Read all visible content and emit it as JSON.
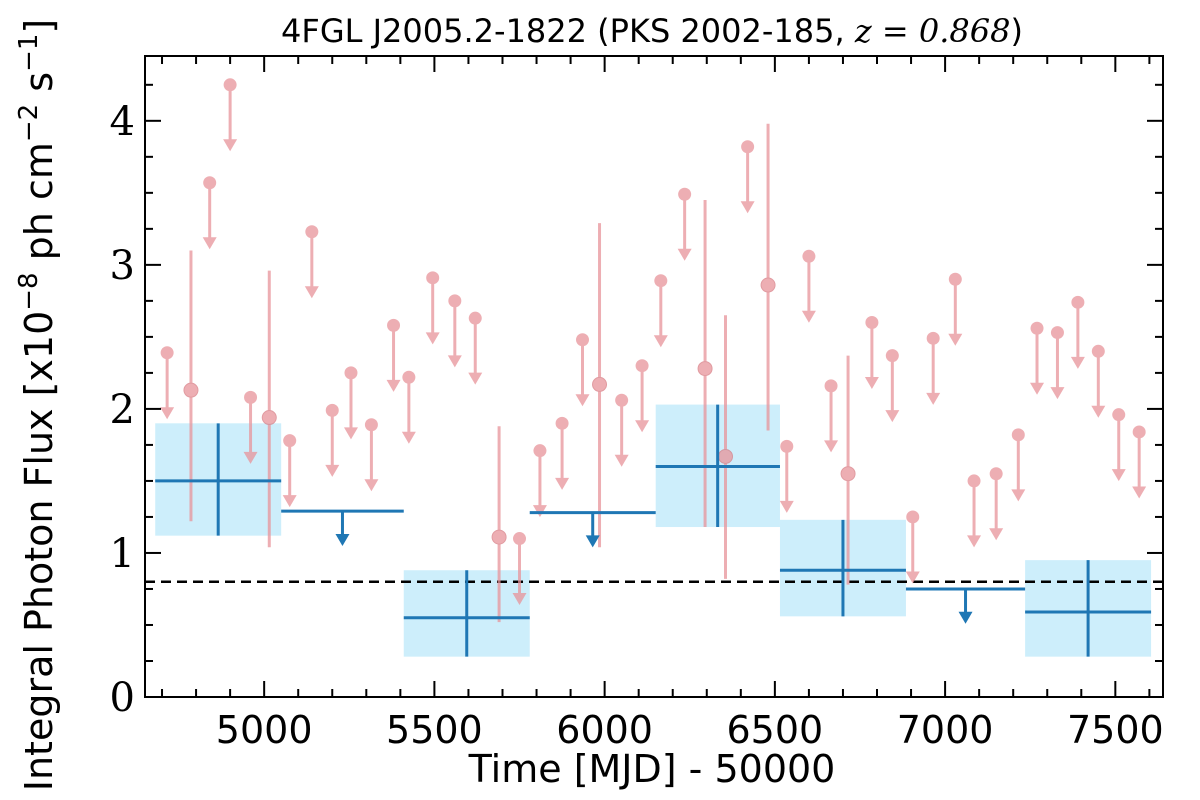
{
  "chart_data": {
    "type": "scatter",
    "title": "4FGL J2005.2-1822 (PKS 2002-185, ",
    "title_redshift": "z = 0.868",
    "title_close": ")",
    "xlabel": "Time [MJD] - 50000",
    "ylabel": "Integral Photon Flux [x10",
    "ylabel_exp": "−8",
    "ylabel_mid": " ph cm",
    "ylabel_exp2": "−2",
    "ylabel_tail": " s",
    "ylabel_exp3": "−1",
    "ylabel_close": "]",
    "xlim": [
      4650,
      7640
    ],
    "ylim": [
      0,
      4.45
    ],
    "xticks": [
      5000,
      5500,
      6000,
      6500,
      7000,
      7500
    ],
    "xtick_labels": [
      "5000",
      "5500",
      "6000",
      "6500",
      "7000",
      "7500"
    ],
    "yticks": [
      0,
      1,
      2,
      3,
      4
    ],
    "ytick_labels": [
      "0",
      "1",
      "2",
      "3",
      "4"
    ],
    "reference_line": 0.8,
    "colors": {
      "short_bins": "#e8949a",
      "long_bins": "#1f77b4",
      "long_band": "#cdeefb",
      "reference": "#000000"
    },
    "short_bins": {
      "detections": [
        {
          "x": 4785,
          "y": 2.13,
          "ylo": 1.22,
          "yhi": 3.1
        },
        {
          "x": 5015,
          "y": 1.94,
          "ylo": 1.04,
          "yhi": 2.96
        },
        {
          "x": 5690,
          "y": 1.11,
          "ylo": 0.52,
          "yhi": 1.88
        },
        {
          "x": 5985,
          "y": 2.17,
          "ylo": 1.04,
          "yhi": 3.29
        },
        {
          "x": 6295,
          "y": 2.28,
          "ylo": 1.18,
          "yhi": 3.45
        },
        {
          "x": 6355,
          "y": 1.67,
          "ylo": 0.82,
          "yhi": 2.65
        },
        {
          "x": 6480,
          "y": 2.86,
          "ylo": 1.85,
          "yhi": 3.98
        },
        {
          "x": 6715,
          "y": 1.55,
          "ylo": 0.78,
          "yhi": 2.37
        }
      ],
      "upper_limits": [
        {
          "x": 4715,
          "y": 2.39
        },
        {
          "x": 4840,
          "y": 3.57
        },
        {
          "x": 4900,
          "y": 4.25
        },
        {
          "x": 4960,
          "y": 2.08
        },
        {
          "x": 5075,
          "y": 1.78
        },
        {
          "x": 5140,
          "y": 3.23
        },
        {
          "x": 5200,
          "y": 1.99
        },
        {
          "x": 5255,
          "y": 2.25
        },
        {
          "x": 5315,
          "y": 1.89
        },
        {
          "x": 5380,
          "y": 2.58
        },
        {
          "x": 5425,
          "y": 2.22
        },
        {
          "x": 5495,
          "y": 2.91
        },
        {
          "x": 5560,
          "y": 2.75
        },
        {
          "x": 5620,
          "y": 2.63
        },
        {
          "x": 5750,
          "y": 1.1
        },
        {
          "x": 5810,
          "y": 1.71
        },
        {
          "x": 5875,
          "y": 1.9
        },
        {
          "x": 5935,
          "y": 2.48
        },
        {
          "x": 6050,
          "y": 2.06
        },
        {
          "x": 6110,
          "y": 2.3
        },
        {
          "x": 6165,
          "y": 2.89
        },
        {
          "x": 6235,
          "y": 3.49
        },
        {
          "x": 6420,
          "y": 3.82
        },
        {
          "x": 6535,
          "y": 1.74
        },
        {
          "x": 6600,
          "y": 3.06
        },
        {
          "x": 6665,
          "y": 2.16
        },
        {
          "x": 6785,
          "y": 2.6
        },
        {
          "x": 6845,
          "y": 2.37
        },
        {
          "x": 6905,
          "y": 1.25
        },
        {
          "x": 6965,
          "y": 2.49
        },
        {
          "x": 7030,
          "y": 2.9
        },
        {
          "x": 7085,
          "y": 1.5
        },
        {
          "x": 7150,
          "y": 1.55
        },
        {
          "x": 7215,
          "y": 1.82
        },
        {
          "x": 7270,
          "y": 2.56
        },
        {
          "x": 7330,
          "y": 2.53
        },
        {
          "x": 7390,
          "y": 2.74
        },
        {
          "x": 7450,
          "y": 2.4
        },
        {
          "x": 7510,
          "y": 1.96
        },
        {
          "x": 7570,
          "y": 1.84
        }
      ]
    },
    "long_bins": {
      "detections": [
        {
          "x0": 4680,
          "x1": 5050,
          "x": 4865,
          "y": 1.5,
          "ylo": 1.12,
          "yhi": 1.9
        },
        {
          "x0": 5410,
          "x1": 5780,
          "x": 5595,
          "y": 0.55,
          "ylo": 0.28,
          "yhi": 0.88
        },
        {
          "x0": 6150,
          "x1": 6515,
          "x": 6332,
          "y": 1.6,
          "ylo": 1.18,
          "yhi": 2.03
        },
        {
          "x0": 6515,
          "x1": 6885,
          "x": 6700,
          "y": 0.88,
          "ylo": 0.56,
          "yhi": 1.23
        },
        {
          "x0": 7235,
          "x1": 7605,
          "x": 7420,
          "y": 0.59,
          "ylo": 0.28,
          "yhi": 0.95
        }
      ],
      "upper_limits": [
        {
          "x0": 5050,
          "x1": 5410,
          "x": 5230,
          "y": 1.29
        },
        {
          "x0": 5780,
          "x1": 6150,
          "x": 5965,
          "y": 1.28
        },
        {
          "x0": 6885,
          "x1": 7235,
          "x": 7060,
          "y": 0.75
        }
      ]
    }
  }
}
